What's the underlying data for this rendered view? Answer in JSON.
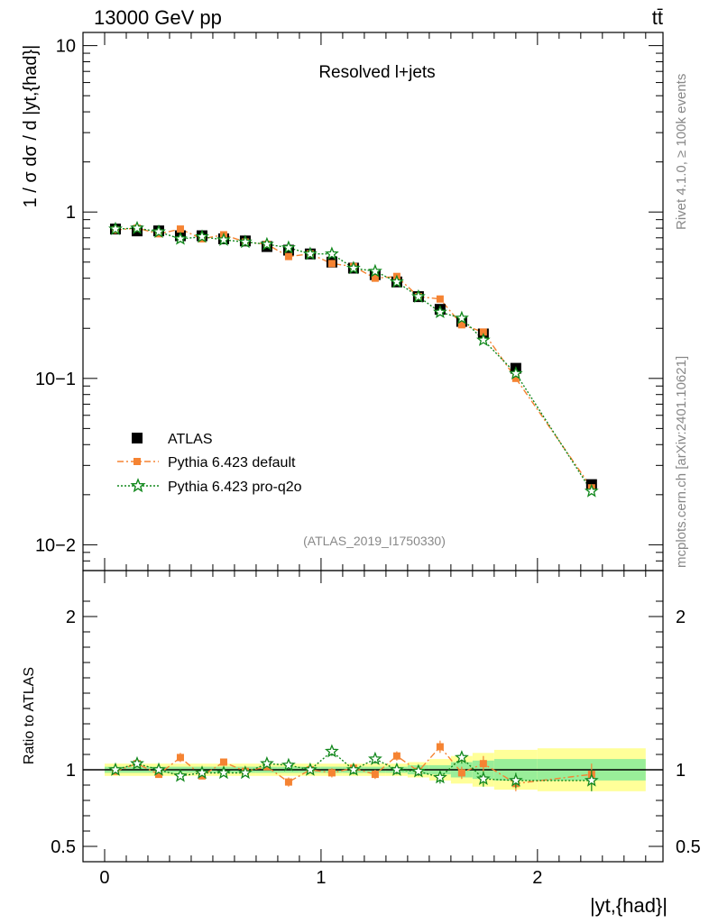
{
  "header": {
    "energy_label": "13000 GeV pp",
    "process_label": "tt̄"
  },
  "side_labels": {
    "rivet": "Rivet 4.1.0, ≥ 100k events",
    "mcplots": "mcplots.cern.ch [arXiv:2401.10621]"
  },
  "chart_data": [
    {
      "type": "scatter",
      "panel": "main",
      "title": "Resolved l+jets",
      "watermark": "(ATLAS_2019_I1750330)",
      "ylabel": "1 / σ dσ / d |yt,{had}|",
      "yscale": "log",
      "ylim": [
        0.007,
        12
      ],
      "xlim": [
        -0.1,
        2.58
      ],
      "yticks": [
        {
          "value": 10,
          "label": "10"
        },
        {
          "value": 1,
          "label": "1"
        },
        {
          "value": 0.1,
          "label": "10−1"
        },
        {
          "value": 0.01,
          "label": "10−2"
        }
      ],
      "x": [
        0.05,
        0.15,
        0.25,
        0.35,
        0.45,
        0.55,
        0.65,
        0.75,
        0.85,
        0.95,
        1.05,
        1.15,
        1.25,
        1.35,
        1.45,
        1.55,
        1.65,
        1.75,
        1.9,
        2.25
      ],
      "series": [
        {
          "name": "ATLAS",
          "color": "#000000",
          "marker": "square",
          "values": [
            0.79,
            0.77,
            0.77,
            0.72,
            0.72,
            0.69,
            0.67,
            0.62,
            0.59,
            0.56,
            0.5,
            0.46,
            0.42,
            0.38,
            0.31,
            0.26,
            0.22,
            0.185,
            0.115,
            0.023
          ]
        },
        {
          "name": "Pythia 6.423 default",
          "color": "#f58332",
          "marker": "square",
          "line": "dashdot",
          "values": [
            0.78,
            0.8,
            0.74,
            0.79,
            0.69,
            0.73,
            0.66,
            0.64,
            0.54,
            0.56,
            0.49,
            0.47,
            0.4,
            0.41,
            0.31,
            0.3,
            0.21,
            0.19,
            0.1,
            0.022
          ]
        },
        {
          "name": "Pythia 6.423 pro-q2o",
          "color": "#11881c",
          "marker": "star",
          "line": "dotted",
          "values": [
            0.79,
            0.8,
            0.76,
            0.69,
            0.71,
            0.68,
            0.66,
            0.64,
            0.61,
            0.56,
            0.56,
            0.46,
            0.44,
            0.38,
            0.31,
            0.25,
            0.23,
            0.17,
            0.107,
            0.021
          ]
        }
      ],
      "legend_position": "lower-left"
    },
    {
      "type": "scatter",
      "panel": "ratio",
      "ylabel": "Ratio to ATLAS",
      "xlabel": "|yt,{had}|",
      "ylim": [
        0.4,
        2.3
      ],
      "xlim": [
        -0.1,
        2.58
      ],
      "yticks": [
        {
          "value": 2,
          "label": "2"
        },
        {
          "value": 1,
          "label": "1"
        },
        {
          "value": 0.5,
          "label": "0.5"
        }
      ],
      "xticks": [
        {
          "value": 0,
          "label": "0"
        },
        {
          "value": 1,
          "label": "1"
        },
        {
          "value": 2,
          "label": "2"
        }
      ],
      "x": [
        0.05,
        0.15,
        0.25,
        0.35,
        0.45,
        0.55,
        0.65,
        0.75,
        0.85,
        0.95,
        1.05,
        1.15,
        1.25,
        1.35,
        1.45,
        1.55,
        1.65,
        1.75,
        1.9,
        2.25
      ],
      "bins": [
        [
          0,
          0.1
        ],
        [
          0.1,
          0.2
        ],
        [
          0.2,
          0.3
        ],
        [
          0.3,
          0.4
        ],
        [
          0.4,
          0.5
        ],
        [
          0.5,
          0.6
        ],
        [
          0.6,
          0.7
        ],
        [
          0.7,
          0.8
        ],
        [
          0.8,
          0.9
        ],
        [
          0.9,
          1.0
        ],
        [
          1.0,
          1.1
        ],
        [
          1.1,
          1.2
        ],
        [
          1.2,
          1.3
        ],
        [
          1.3,
          1.4
        ],
        [
          1.4,
          1.5
        ],
        [
          1.5,
          1.6
        ],
        [
          1.6,
          1.7
        ],
        [
          1.7,
          1.8
        ],
        [
          1.8,
          2.0
        ],
        [
          2.0,
          2.5
        ]
      ],
      "band_stat": [
        0.02,
        0.02,
        0.02,
        0.02,
        0.02,
        0.02,
        0.02,
        0.02,
        0.02,
        0.02,
        0.02,
        0.02,
        0.02,
        0.02,
        0.03,
        0.03,
        0.05,
        0.06,
        0.07,
        0.07
      ],
      "band_total": [
        0.04,
        0.04,
        0.04,
        0.04,
        0.04,
        0.04,
        0.04,
        0.04,
        0.04,
        0.04,
        0.04,
        0.04,
        0.04,
        0.04,
        0.05,
        0.07,
        0.09,
        0.11,
        0.13,
        0.14
      ],
      "series": [
        {
          "name": "Pythia 6.423 default",
          "color": "#f58332",
          "values": [
            0.99,
            1.04,
            0.97,
            1.08,
            0.96,
            1.05,
            0.99,
            1.02,
            0.92,
            1.0,
            0.98,
            1.01,
            0.97,
            1.09,
            0.99,
            1.15,
            0.98,
            1.04,
            0.91,
            0.97
          ],
          "errors": [
            0.02,
            0.02,
            0.02,
            0.03,
            0.02,
            0.02,
            0.02,
            0.02,
            0.03,
            0.02,
            0.03,
            0.03,
            0.03,
            0.03,
            0.03,
            0.04,
            0.04,
            0.05,
            0.05,
            0.07
          ]
        },
        {
          "name": "Pythia 6.423 pro-q2o",
          "color": "#11881c",
          "values": [
            1.0,
            1.04,
            1.0,
            0.96,
            0.98,
            0.98,
            0.98,
            1.04,
            1.03,
            1.0,
            1.12,
            1.0,
            1.07,
            1.0,
            0.99,
            0.95,
            1.08,
            0.94,
            0.93,
            0.93
          ],
          "errors": [
            0.02,
            0.02,
            0.02,
            0.02,
            0.02,
            0.02,
            0.02,
            0.02,
            0.02,
            0.02,
            0.03,
            0.03,
            0.03,
            0.03,
            0.03,
            0.04,
            0.04,
            0.05,
            0.05,
            0.07
          ]
        }
      ]
    }
  ]
}
